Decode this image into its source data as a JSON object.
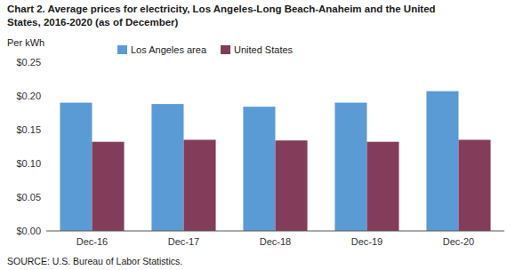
{
  "chart_data": {
    "type": "bar",
    "title": [
      "Chart 2. Average prices for electricity, Los Angeles-Long Beach-Anaheim and the United",
      "States, 2016-2020  (as of December)"
    ],
    "y_label": "Per kWh",
    "annotations": [
      "SOURCE: U.S. Bureau of Labor Statistics."
    ],
    "categories": [
      "Dec-16",
      "Dec-17",
      "Dec-18",
      "Dec-19",
      "Dec-20"
    ],
    "series": [
      {
        "name": "Los Angeles area",
        "color": "#5B9BD5",
        "values": [
          0.19,
          0.188,
          0.184,
          0.19,
          0.207
        ]
      },
      {
        "name": "United States",
        "color": "#833C5A",
        "values": [
          0.132,
          0.135,
          0.134,
          0.132,
          0.135
        ]
      }
    ],
    "ylim": [
      0.0,
      0.25
    ],
    "yticks": [
      {
        "value": 0.0,
        "label": "$0.00"
      },
      {
        "value": 0.05,
        "label": "$0.05"
      },
      {
        "value": 0.1,
        "label": "$0.10"
      },
      {
        "value": 0.15,
        "label": "$0.15"
      },
      {
        "value": 0.2,
        "label": "$0.20"
      },
      {
        "value": 0.25,
        "label": "$0.25"
      }
    ],
    "grid": false,
    "legend": "upper left"
  }
}
